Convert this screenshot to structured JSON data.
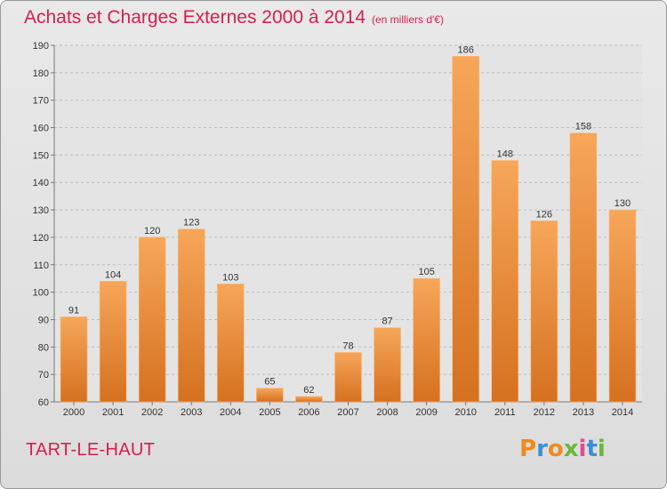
{
  "header": {
    "title": "Achats et Charges Externes 2000 à 2014",
    "subtitle": "(en milliers d'€)"
  },
  "footer": {
    "place": "TART-LE-HAUT",
    "brand": "Proxiti"
  },
  "colors": {
    "accent": "#d4204d",
    "bar_light": "#f7a65a",
    "bar_dark": "#d5711f",
    "brand_letters": [
      "#f08a1c",
      "#3a8fd6",
      "#f08a1c",
      "#68b83c",
      "#e64a8c",
      "#3a8fd6",
      "#68b83c"
    ]
  },
  "chart_data": {
    "type": "bar",
    "title": "Achats et Charges Externes 2000 à 2014",
    "subtitle": "(en milliers d'€)",
    "xlabel": "",
    "ylabel": "",
    "categories": [
      "2000",
      "2001",
      "2002",
      "2003",
      "2004",
      "2005",
      "2006",
      "2007",
      "2008",
      "2009",
      "2010",
      "2011",
      "2012",
      "2013",
      "2014"
    ],
    "values": [
      91,
      104,
      120,
      123,
      103,
      65,
      62,
      78,
      87,
      105,
      186,
      148,
      126,
      158,
      130
    ],
    "ylim": [
      60,
      190
    ],
    "yticks": [
      60,
      70,
      80,
      90,
      100,
      110,
      120,
      130,
      140,
      150,
      160,
      170,
      180,
      190
    ],
    "grid": true,
    "grid_style": "dashed horizontal",
    "data_labels": true
  }
}
